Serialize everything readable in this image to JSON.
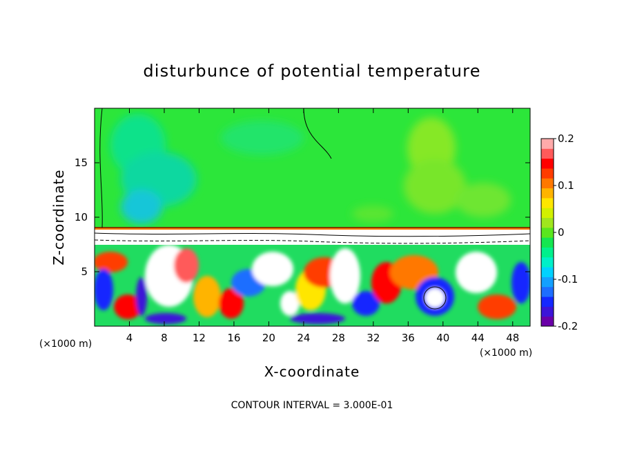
{
  "chart_data": {
    "type": "heatmap",
    "title": "disturbunce of potential temperature",
    "xlabel": "X-coordinate",
    "ylabel": "Z-coordinate",
    "x_unit": "(×1000 m)",
    "y_unit": "(×1000 m)",
    "xlim": [
      0,
      50
    ],
    "ylim": [
      0,
      20
    ],
    "x_ticks": [
      "4",
      "8",
      "12",
      "16",
      "20",
      "24",
      "28",
      "32",
      "36",
      "40",
      "44",
      "48"
    ],
    "y_ticks": [
      "5",
      "10",
      "15"
    ],
    "colorbar": {
      "range": [
        -0.2,
        0.2
      ],
      "tick_labels": [
        "0.2",
        "0.1",
        "0",
        "-0.1",
        "-0.2"
      ],
      "colors": [
        "#6a00a8",
        "#3c14d8",
        "#1428ff",
        "#1e6eff",
        "#14a0ff",
        "#00d2ff",
        "#00f0c8",
        "#00f08c",
        "#14e650",
        "#5ae61e",
        "#a0e61e",
        "#d2f000",
        "#ffe600",
        "#ffb400",
        "#ff7800",
        "#ff3c00",
        "#ff0000",
        "#ff5a5a",
        "#ffaaaa"
      ]
    },
    "footer": "CONTOUR INTERVAL = 3.000E-01"
  }
}
